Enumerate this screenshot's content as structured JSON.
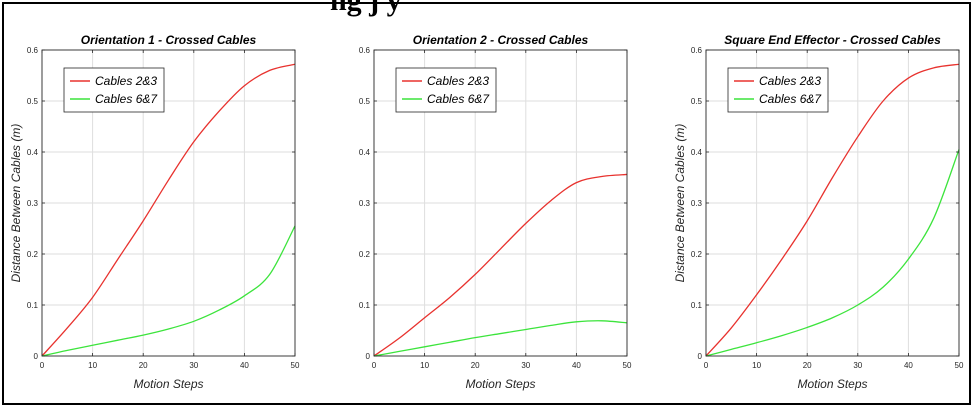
{
  "page": {
    "cut_title": "ng                    j y"
  },
  "chart_data": [
    {
      "type": "line",
      "title": "Orientation 1 - Crossed Cables",
      "xlabel": "Motion Steps",
      "ylabel": "Distance Between Cables (m)",
      "xlim": [
        0,
        50
      ],
      "ylim": [
        0,
        0.6
      ],
      "xticks": [
        0,
        10,
        20,
        30,
        40,
        50
      ],
      "yticks": [
        0,
        0.1,
        0.2,
        0.3,
        0.4,
        0.5,
        0.6
      ],
      "grid": true,
      "legend_position": "top-left",
      "series": [
        {
          "name": "Cables 2&3",
          "color": "#e8322e",
          "x": [
            0,
            5,
            10,
            15,
            20,
            25,
            30,
            35,
            40,
            45,
            50
          ],
          "y": [
            0,
            0.055,
            0.115,
            0.19,
            0.265,
            0.345,
            0.42,
            0.48,
            0.53,
            0.56,
            0.572
          ]
        },
        {
          "name": "Cables 6&7",
          "color": "#3ce43c",
          "x": [
            0,
            5,
            10,
            15,
            20,
            25,
            30,
            35,
            40,
            45,
            50
          ],
          "y": [
            0,
            0.011,
            0.021,
            0.031,
            0.041,
            0.053,
            0.068,
            0.09,
            0.118,
            0.16,
            0.255
          ]
        }
      ]
    },
    {
      "type": "line",
      "title": "Orientation 2 - Crossed Cables",
      "xlabel": "Motion Steps",
      "ylabel": "",
      "xlim": [
        0,
        50
      ],
      "ylim": [
        0,
        0.6
      ],
      "xticks": [
        0,
        10,
        20,
        30,
        40,
        50
      ],
      "yticks": [
        0,
        0.1,
        0.2,
        0.3,
        0.4,
        0.5,
        0.6
      ],
      "grid": true,
      "legend_position": "top-left",
      "series": [
        {
          "name": "Cables 2&3",
          "color": "#e8322e",
          "x": [
            0,
            5,
            10,
            15,
            20,
            25,
            30,
            35,
            40,
            45,
            50
          ],
          "y": [
            0,
            0.035,
            0.075,
            0.115,
            0.16,
            0.21,
            0.26,
            0.305,
            0.34,
            0.352,
            0.356
          ]
        },
        {
          "name": "Cables 6&7",
          "color": "#3ce43c",
          "x": [
            0,
            5,
            10,
            15,
            20,
            25,
            30,
            35,
            40,
            45,
            50
          ],
          "y": [
            0,
            0.009,
            0.018,
            0.027,
            0.036,
            0.044,
            0.052,
            0.06,
            0.067,
            0.069,
            0.065
          ]
        }
      ]
    },
    {
      "type": "line",
      "title": "Square End Effector - Crossed Cables",
      "xlabel": "Motion Steps",
      "ylabel": "Distance Between Cables (m)",
      "xlim": [
        0,
        50
      ],
      "ylim": [
        0,
        0.6
      ],
      "xticks": [
        0,
        10,
        20,
        30,
        40,
        50
      ],
      "yticks": [
        0,
        0.1,
        0.2,
        0.3,
        0.4,
        0.5,
        0.6
      ],
      "grid": true,
      "legend_position": "top-left",
      "series": [
        {
          "name": "Cables 2&3",
          "color": "#e8322e",
          "x": [
            0,
            5,
            10,
            15,
            20,
            25,
            30,
            35,
            40,
            45,
            50
          ],
          "y": [
            0,
            0.055,
            0.12,
            0.19,
            0.265,
            0.35,
            0.43,
            0.5,
            0.545,
            0.565,
            0.572
          ]
        },
        {
          "name": "Cables 6&7",
          "color": "#3ce43c",
          "x": [
            0,
            5,
            10,
            15,
            20,
            25,
            30,
            35,
            40,
            45,
            50
          ],
          "y": [
            0,
            0.013,
            0.026,
            0.04,
            0.056,
            0.075,
            0.1,
            0.135,
            0.19,
            0.27,
            0.405
          ]
        }
      ]
    }
  ]
}
